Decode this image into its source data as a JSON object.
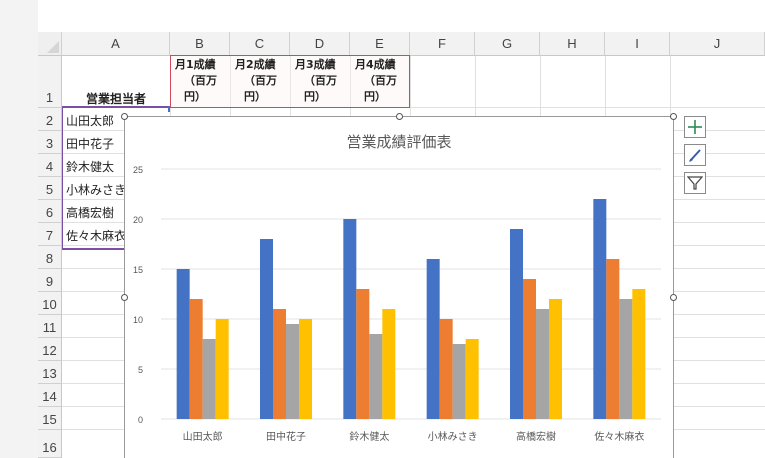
{
  "columns": [
    "A",
    "B",
    "C",
    "D",
    "E",
    "F",
    "G",
    "H",
    "I",
    "J"
  ],
  "rows": [
    "1",
    "2",
    "3",
    "4",
    "5",
    "6",
    "7",
    "8",
    "9",
    "10",
    "11",
    "12",
    "13",
    "14",
    "15",
    "16"
  ],
  "header_row": {
    "a1": "営業担当者",
    "months": [
      [
        "月1成績",
        "（百万",
        "円）"
      ],
      [
        "月2成績",
        "（百万",
        "円）"
      ],
      [
        "月3成績",
        "（百万",
        "円）"
      ],
      [
        "月4成績",
        "（百万",
        "円）"
      ]
    ]
  },
  "names": [
    "山田太郎",
    "田中花子",
    "鈴木健太",
    "小林みさき",
    "高橋宏樹",
    "佐々木麻衣"
  ],
  "side_buttons": [
    "plus-icon",
    "brush-icon",
    "filter-icon"
  ],
  "chart_data": {
    "type": "bar",
    "title": "営業成績評価表",
    "categories": [
      "山田太郎",
      "田中花子",
      "鈴木健太",
      "小林みさき",
      "高橋宏樹",
      "佐々木麻衣"
    ],
    "series": [
      {
        "values": [
          15,
          18,
          20,
          16,
          19,
          22
        ],
        "color": "#4472c4"
      },
      {
        "values": [
          12,
          11,
          13,
          10,
          14,
          16
        ],
        "color": "#ed7d31"
      },
      {
        "values": [
          8,
          9.5,
          8.5,
          7.5,
          11,
          12
        ],
        "color": "#a5a5a5"
      },
      {
        "values": [
          10,
          10,
          11,
          8,
          12,
          13
        ],
        "color": "#ffc000"
      }
    ],
    "ylim": [
      0,
      25
    ],
    "yticks": [
      "0",
      "5",
      "10",
      "15",
      "20",
      "25"
    ],
    "grid": true,
    "legend": "none"
  }
}
